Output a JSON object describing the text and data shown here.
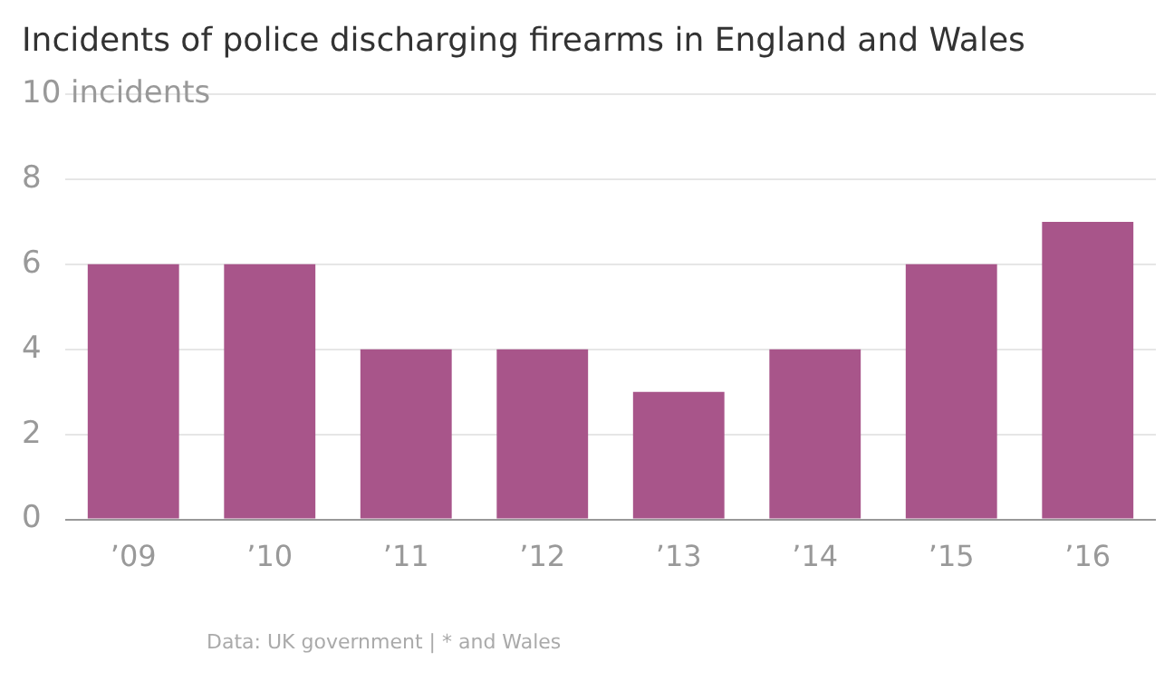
{
  "chart_data": {
    "type": "bar",
    "title": "Incidents of police discharging firearms in England and Wales",
    "categories": [
      "’09",
      "’10",
      "’11",
      "’12",
      "’13",
      "’14",
      "’15",
      "’16"
    ],
    "values": [
      6,
      6,
      4,
      4,
      3,
      4,
      6,
      7
    ],
    "color": "#a8558a",
    "ylim": [
      0,
      10
    ],
    "yticks": [
      0,
      2,
      4,
      6,
      8,
      {
        "value": 10,
        "label": "10 incidents"
      }
    ],
    "grid": "y",
    "legend": false,
    "annotations": [
      "Data: UK government | * and Wales"
    ]
  }
}
